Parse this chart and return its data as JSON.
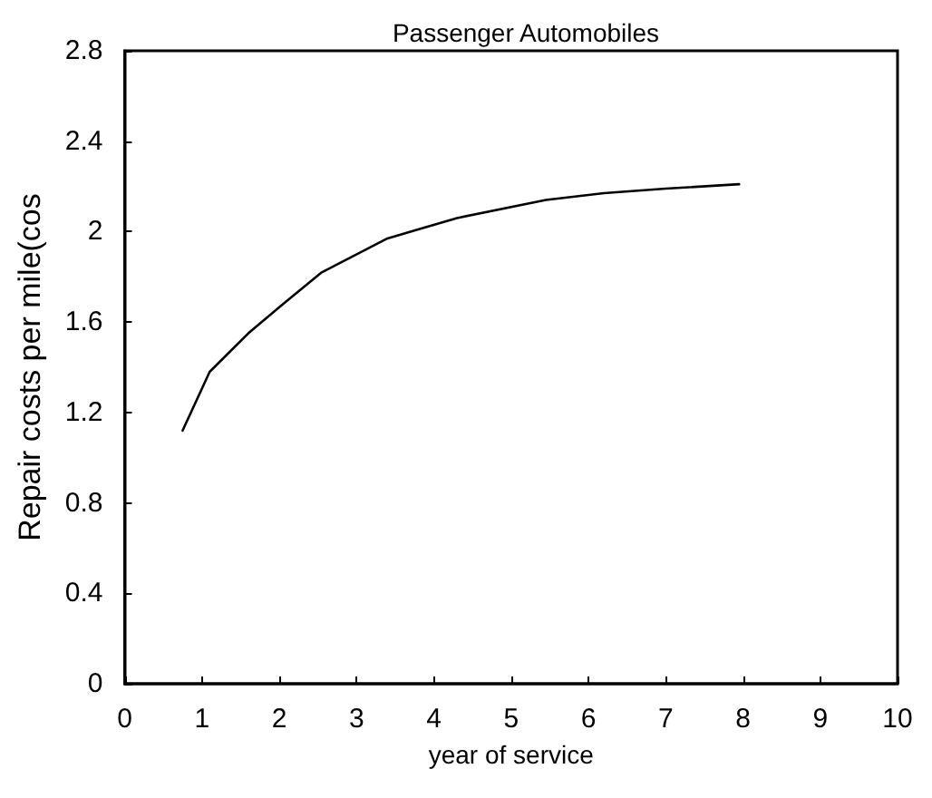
{
  "chart_data": {
    "type": "line",
    "title": "Passenger Automobiles",
    "xlabel": "year of service",
    "ylabel": "Repair costs per mile(cos",
    "x": [
      0.75,
      1.1,
      1.6,
      2.05,
      2.55,
      3.4,
      4.3,
      5.45,
      6.2,
      7,
      7.95
    ],
    "series": [
      {
        "color": "#000000",
        "values": [
          1.12,
          1.38,
          1.55,
          1.68,
          1.82,
          1.97,
          2.06,
          2.14,
          2.17,
          2.19,
          2.21
        ]
      }
    ],
    "xlim": [
      0,
      10
    ],
    "xticks": [
      0,
      1,
      2,
      3,
      4,
      5,
      6,
      7,
      8,
      9,
      10
    ],
    "ylim": [
      0,
      2.8
    ],
    "yticks": [
      0,
      0.4,
      0.8,
      1.2,
      1.6,
      2,
      2.4,
      2.8
    ],
    "grid": false,
    "marker": "none",
    "line_style": "solid"
  }
}
